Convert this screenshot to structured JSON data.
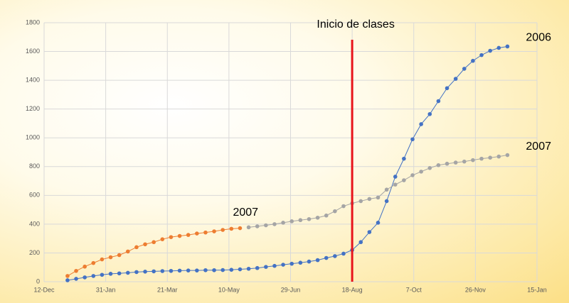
{
  "chart_data": {
    "type": "line",
    "annotation": {
      "text": "Inicio de clases",
      "x": 250,
      "color": "#e8141b"
    },
    "xlim": [
      0,
      400
    ],
    "xticks": [
      {
        "value": 0,
        "label": "12-Dec"
      },
      {
        "value": 50,
        "label": "31-Jan"
      },
      {
        "value": 100,
        "label": "21-Mar"
      },
      {
        "value": 150,
        "label": "10-May"
      },
      {
        "value": 200,
        "label": "29-Jun"
      },
      {
        "value": 250,
        "label": "18-Aug"
      },
      {
        "value": 300,
        "label": "7-Oct"
      },
      {
        "value": 350,
        "label": "26-Nov"
      },
      {
        "value": 400,
        "label": "15-Jan"
      }
    ],
    "ylim": [
      0,
      1800
    ],
    "yticks": [
      0,
      200,
      400,
      600,
      800,
      1000,
      1200,
      1400,
      1600,
      1800
    ],
    "grid": true,
    "series": [
      {
        "name": "2006",
        "color": "#4472c4",
        "x": [
          19,
          26,
          33,
          40,
          47,
          54,
          61,
          68,
          75,
          82,
          89,
          96,
          103,
          110,
          117,
          124,
          131,
          138,
          145,
          152,
          159,
          166,
          173,
          180,
          187,
          194,
          201,
          208,
          215,
          222,
          229,
          236,
          243,
          250,
          257,
          264,
          271,
          278,
          285,
          292,
          299,
          306,
          313,
          320,
          327,
          334,
          341,
          348,
          355,
          362,
          369,
          376
        ],
        "values": [
          10,
          20,
          30,
          40,
          48,
          55,
          58,
          62,
          67,
          70,
          72,
          74,
          75,
          77,
          78,
          78,
          80,
          80,
          81,
          83,
          86,
          90,
          95,
          103,
          110,
          118,
          125,
          132,
          140,
          150,
          165,
          178,
          195,
          220,
          275,
          345,
          410,
          560,
          730,
          855,
          990,
          1095,
          1165,
          1255,
          1345,
          1410,
          1480,
          1535,
          1575,
          1605,
          1625,
          1635
        ]
      },
      {
        "name": "2007",
        "color": "#ed7d31",
        "x": [
          19,
          26,
          33,
          40,
          47,
          54,
          61,
          68,
          75,
          82,
          89,
          96,
          103,
          110,
          117,
          124,
          131,
          138,
          145,
          152,
          159
        ],
        "values": [
          40,
          75,
          105,
          130,
          155,
          170,
          185,
          210,
          240,
          260,
          275,
          295,
          310,
          318,
          325,
          335,
          342,
          350,
          360,
          368,
          372
        ]
      },
      {
        "name": "2007",
        "color": "#a5a5a5",
        "x": [
          166,
          173,
          180,
          187,
          194,
          201,
          208,
          215,
          222,
          229,
          236,
          243,
          250,
          257,
          264,
          271,
          278,
          285,
          292,
          299,
          306,
          313,
          320,
          327,
          334,
          341,
          348,
          355,
          362,
          369,
          376
        ],
        "values": [
          378,
          385,
          392,
          400,
          410,
          420,
          428,
          435,
          445,
          460,
          490,
          525,
          545,
          560,
          575,
          585,
          640,
          675,
          705,
          740,
          765,
          790,
          810,
          820,
          828,
          835,
          845,
          855,
          862,
          870,
          880
        ]
      }
    ]
  }
}
